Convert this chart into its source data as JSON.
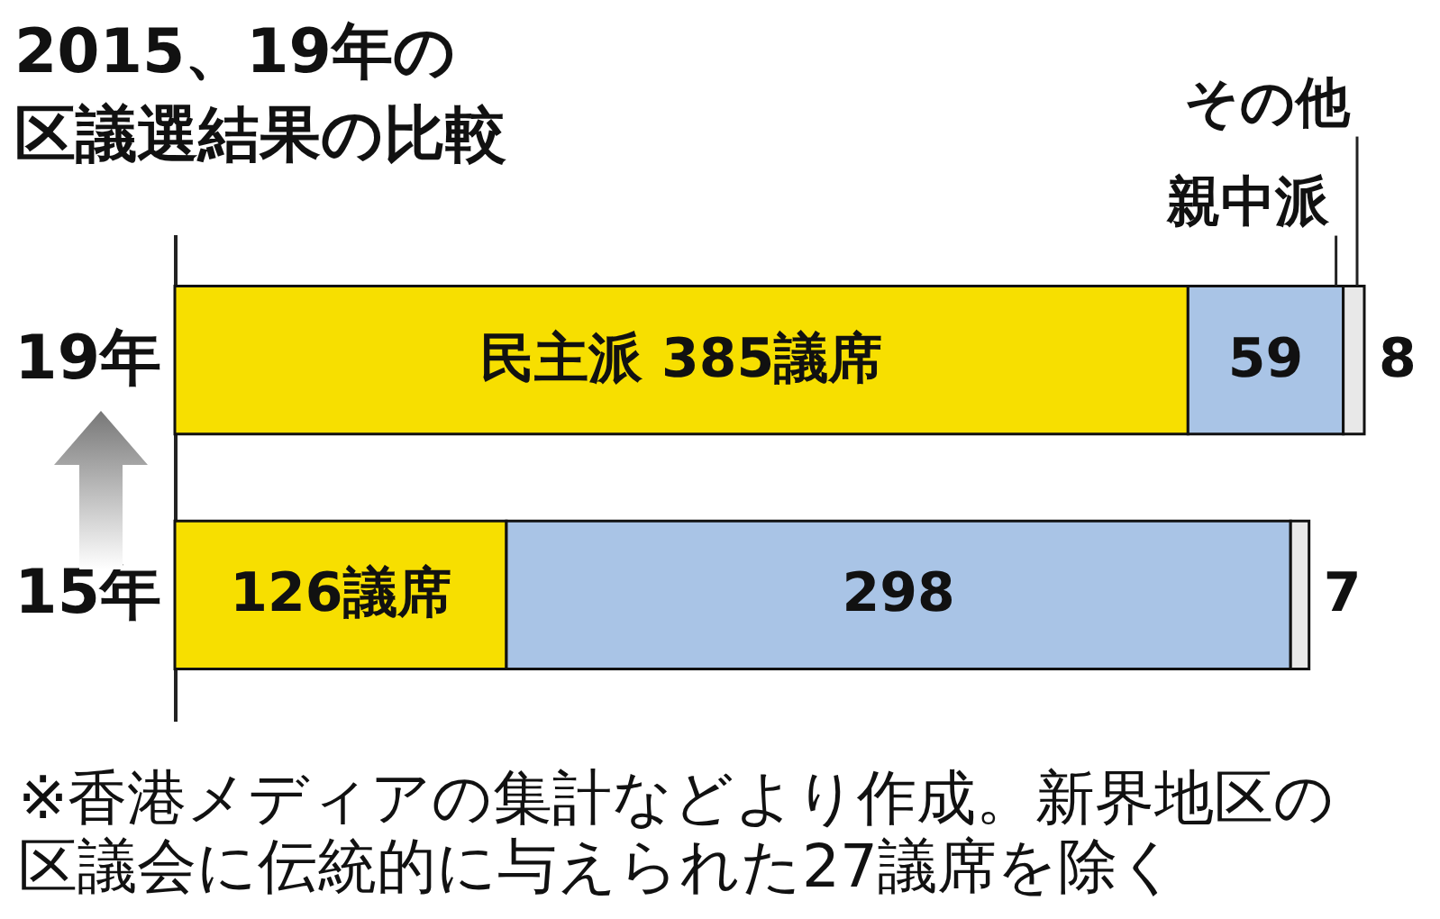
{
  "chart_data": {
    "type": "bar",
    "orientation": "horizontal",
    "stacked": true,
    "title": "2015、19年の区議選結果の比較",
    "categories": [
      "19年",
      "15年"
    ],
    "tick_labels": "y",
    "grid": false,
    "legend": false,
    "series": [
      {
        "color": "#f7df00",
        "values": [
          385,
          126
        ],
        "value_labels": [
          "民主派 385議席",
          "126議席"
        ]
      },
      {
        "name": "親中派",
        "color": "#a9c4e6",
        "values": [
          59,
          298
        ],
        "value_labels": [
          "59",
          "298"
        ]
      },
      {
        "name": "その他",
        "color": "#e8e8e8",
        "values": [
          8,
          7
        ],
        "value_labels": [
          "8",
          "7"
        ]
      }
    ],
    "annotations": [
      "※香港メディアの集計などより作成。新界地区の区議会に伝統的に与えられた27議席を除く"
    ]
  }
}
